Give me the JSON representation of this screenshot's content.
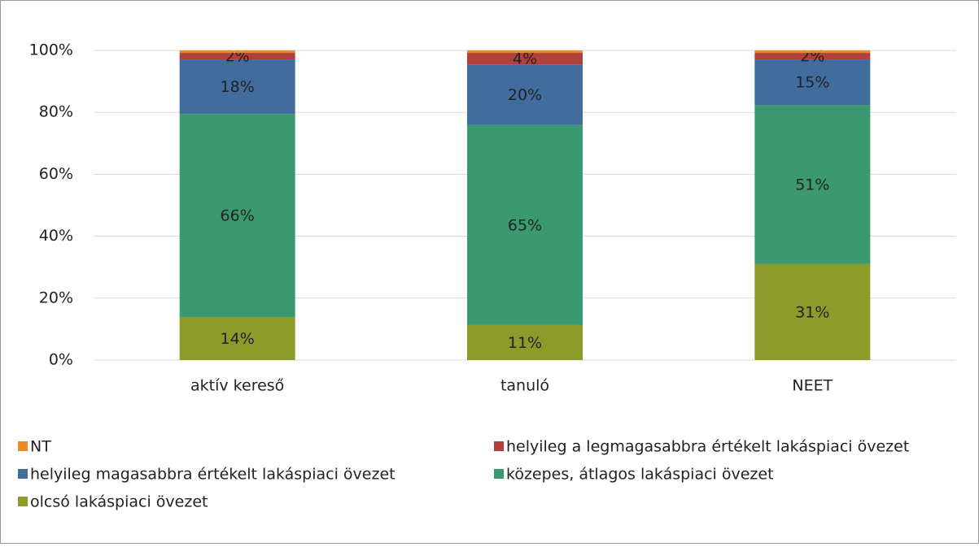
{
  "chart_data": {
    "type": "stacked_bar",
    "categories": [
      "aktív kereső",
      "tanuló",
      "NEET"
    ],
    "ylim": [
      0,
      100
    ],
    "yticks": [
      {
        "value": 0,
        "label": "0%"
      },
      {
        "value": 20,
        "label": "20%"
      },
      {
        "value": 40,
        "label": "40%"
      },
      {
        "value": 60,
        "label": "60%"
      },
      {
        "value": 80,
        "label": "80%"
      },
      {
        "value": 100,
        "label": "100%"
      }
    ],
    "grid": true,
    "legend": "bottom",
    "series": [
      {
        "name": "olcsó lakáspiaci övezet",
        "color": "#8c9b2a",
        "values": [
          13.9,
          11.3,
          31.0
        ],
        "value_labels": [
          "14%",
          "11%",
          "31%"
        ]
      },
      {
        "name": "közepes, átlagos lakáspiaci övezet",
        "color": "#3b9972",
        "values": [
          65.6,
          64.6,
          51.4
        ],
        "value_labels": [
          "66%",
          "65%",
          "51%"
        ]
      },
      {
        "name": "helyileg magasabbra értékelt lakáspiaci övezet",
        "color": "#416d9e",
        "values": [
          17.6,
          19.6,
          14.7
        ],
        "value_labels": [
          "18%",
          "20%",
          "15%"
        ]
      },
      {
        "name": "helyileg a legmagasabbra értékelt lakáspiaci övezet",
        "color": "#b1403a",
        "values": [
          2.1,
          3.7,
          2.1
        ],
        "value_labels": [
          "2%",
          "4%",
          "2%"
        ]
      },
      {
        "name": "NT",
        "color": "#e98a2f",
        "values": [
          0.8,
          0.8,
          0.8
        ]
      }
    ]
  }
}
